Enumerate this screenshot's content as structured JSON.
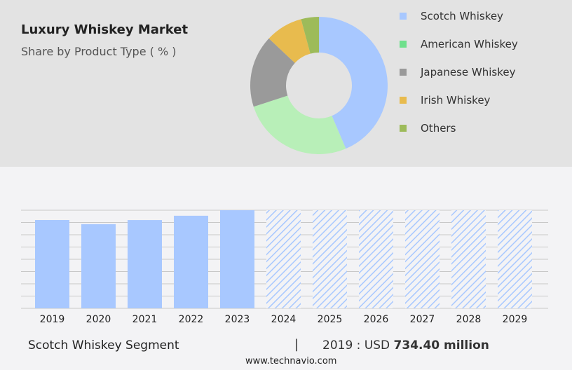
{
  "title": "Luxury Whiskey Market",
  "subtitle": "Share by Product Type ( % )",
  "chart_data": [
    {
      "type": "pie",
      "donut": true,
      "categories": [
        "Scotch Whiskey",
        "American Whiskey",
        "Japanese Whiskey",
        "Irish Whiskey",
        "Others"
      ],
      "values": [
        43.6,
        26.4,
        17.0,
        8.8,
        4.2
      ],
      "colors": [
        "#a8c8ff",
        "#b8efb8",
        "#9a9a9a",
        "#e8bb4e",
        "#9dbb5a"
      ],
      "legend_colors": [
        "#a8c8ff",
        "#6fe08c",
        "#9a9a9a",
        "#e8bb4e",
        "#9dbb5a"
      ],
      "legend": "right"
    },
    {
      "type": "bar",
      "categories": [
        "2019",
        "2020",
        "2021",
        "2022",
        "2023",
        "2024",
        "2025",
        "2026",
        "2027",
        "2028",
        "2029"
      ],
      "values": [
        734.4,
        700,
        734,
        770,
        816,
        null,
        null,
        null,
        null,
        null,
        null
      ],
      "forecast_from": "2024",
      "color": "#a8c8ff",
      "grid": true,
      "ylim": [
        0,
        816
      ]
    }
  ],
  "footer": {
    "segment": "Scotch Whiskey Segment",
    "separator": "|",
    "year_label": "2019 : USD ",
    "value": "734.40 million",
    "site": "www.technavio.com"
  }
}
